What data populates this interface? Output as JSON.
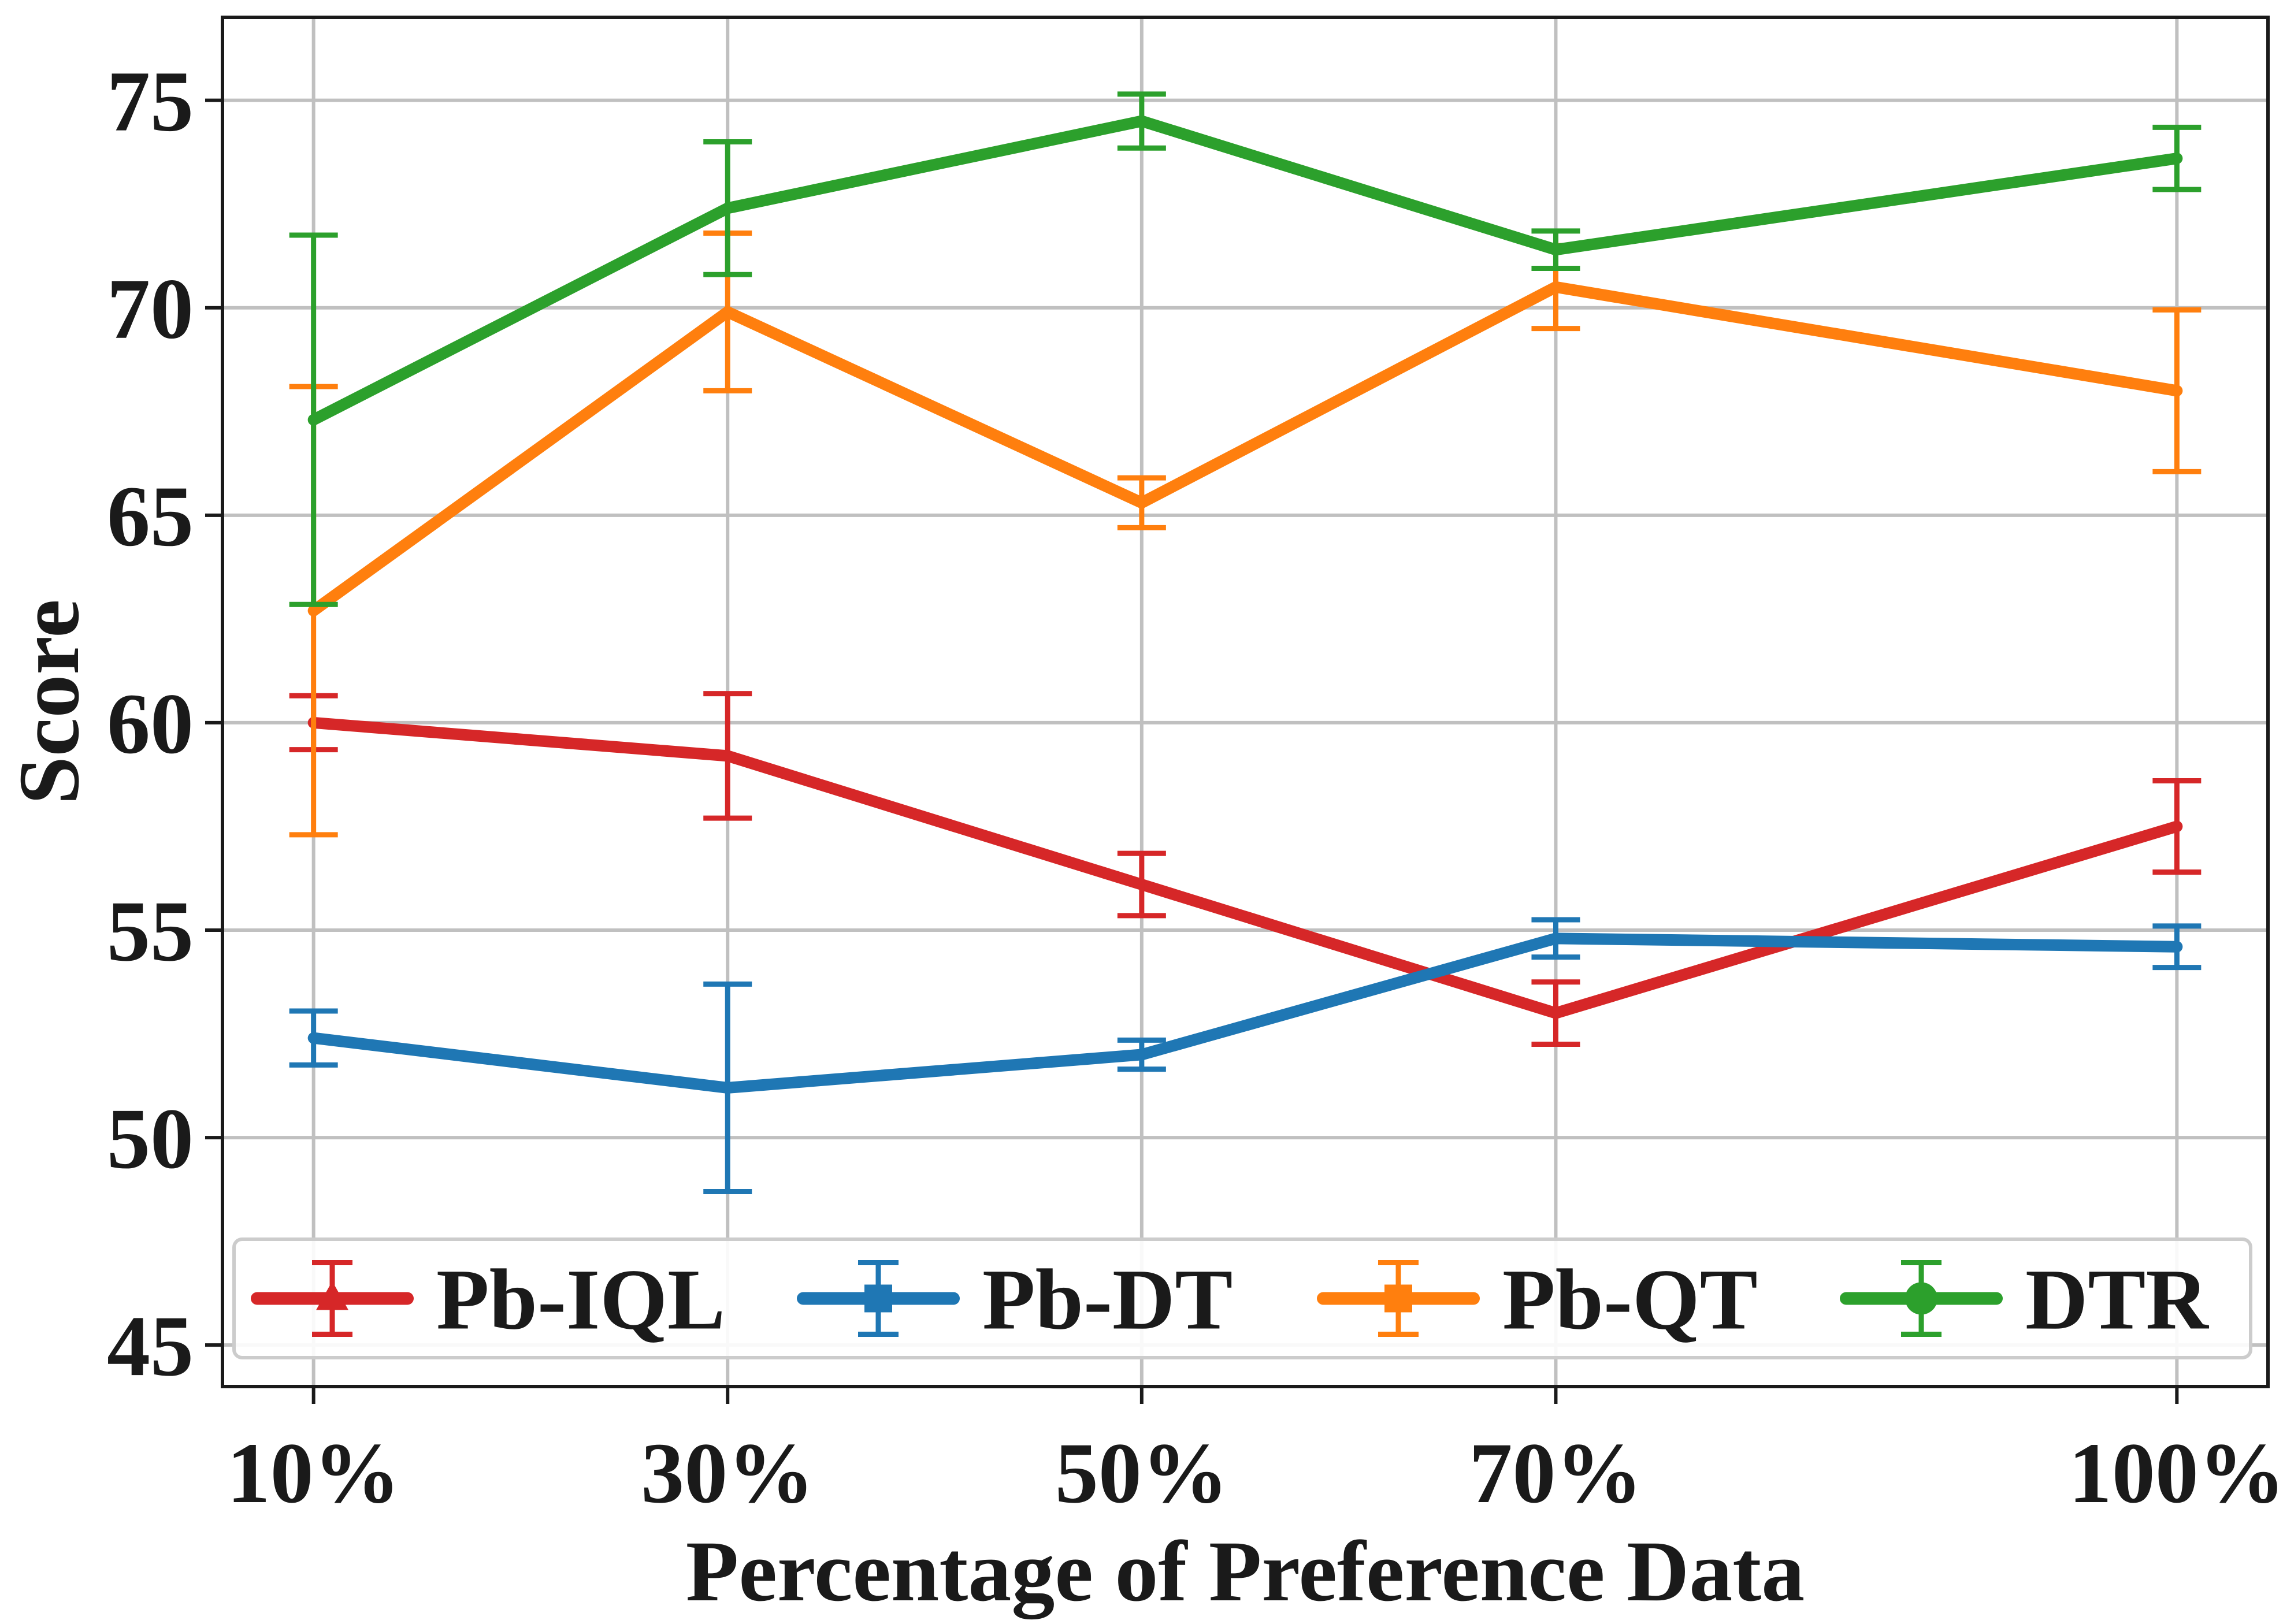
{
  "chart_data": {
    "type": "line",
    "title": "",
    "xlabel": "Percentage of Preference Data",
    "ylabel": "Score",
    "categories": [
      "10%",
      "30%",
      "50%",
      "70%",
      "100%"
    ],
    "x": [
      10,
      30,
      50,
      70,
      100
    ],
    "xlim": [
      5.6,
      104.4
    ],
    "ylim": [
      44.0,
      77.0
    ],
    "yticks": [
      45,
      50,
      55,
      60,
      65,
      70,
      75
    ],
    "ytick_labels": [
      "45",
      "50",
      "55",
      "60",
      "65",
      "70",
      "75"
    ],
    "grid": true,
    "legend_position": "lower center",
    "series": [
      {
        "name": "Pb-IQL",
        "color": "#d62728",
        "marker": "triangle",
        "values": [
          60.0,
          59.2,
          56.1,
          53.0,
          57.5
        ],
        "errors": [
          0.65,
          1.5,
          0.75,
          0.75,
          1.1
        ]
      },
      {
        "name": "Pb-DT",
        "color": "#1f77b4",
        "marker": "square",
        "values": [
          52.4,
          51.2,
          52.0,
          54.8,
          54.6
        ],
        "errors": [
          0.65,
          2.5,
          0.35,
          0.45,
          0.5
        ]
      },
      {
        "name": "Pb-QT",
        "color": "#ff7f0e",
        "marker": "square",
        "values": [
          62.7,
          69.9,
          65.3,
          70.5,
          68.0
        ],
        "errors": [
          5.4,
          1.9,
          0.6,
          1.0,
          1.95
        ]
      },
      {
        "name": "DTR",
        "color": "#2ca02c",
        "marker": "circle",
        "values": [
          67.3,
          72.4,
          74.5,
          71.4,
          73.6
        ],
        "errors": [
          4.45,
          1.6,
          0.65,
          0.45,
          0.75
        ]
      }
    ]
  }
}
